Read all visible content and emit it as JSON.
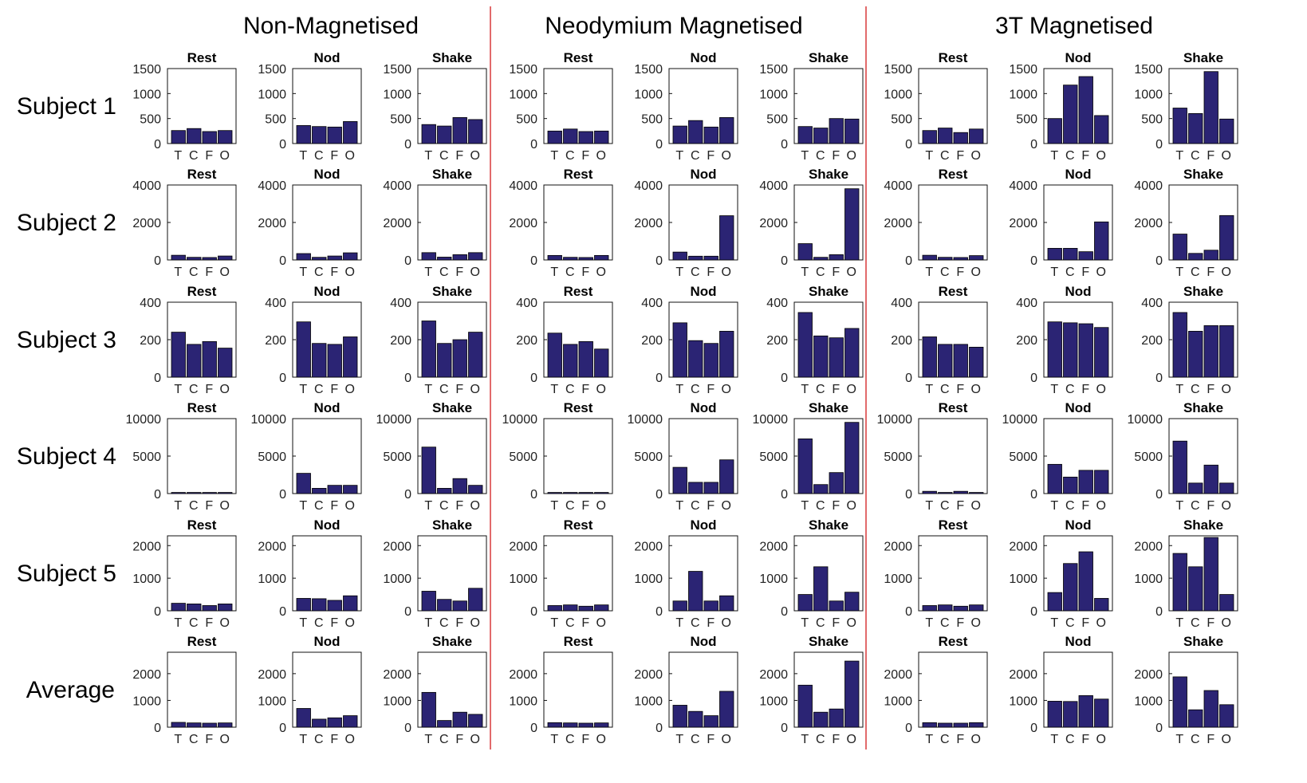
{
  "chart_data": {
    "type": "bar",
    "layout": "small-multiples grid",
    "conditions": [
      "Non-Magnetised",
      "Neodymium Magnetised",
      "3T Magnetised"
    ],
    "tasks": [
      "Rest",
      "Nod",
      "Shake"
    ],
    "categories": [
      "T",
      "C",
      "F",
      "O"
    ],
    "rows": [
      {
        "label": "Subject 1",
        "ylim": [
          0,
          1500
        ],
        "yticks": [
          "0",
          "500",
          "1000",
          "1500"
        ],
        "panels": [
          [
            [
              260,
              300,
              240,
              260
            ],
            [
              360,
              340,
              330,
              440
            ],
            [
              380,
              350,
              520,
              480
            ]
          ],
          [
            [
              250,
              290,
              240,
              250
            ],
            [
              350,
              460,
              330,
              520
            ],
            [
              340,
              310,
              500,
              490
            ]
          ],
          [
            [
              260,
              310,
              220,
              290
            ],
            [
              500,
              1170,
              1340,
              560
            ],
            [
              710,
              600,
              1440,
              490
            ]
          ]
        ]
      },
      {
        "label": "Subject 2",
        "ylim": [
          0,
          4000
        ],
        "yticks": [
          "0",
          "2000",
          "4000"
        ],
        "panels": [
          [
            [
              250,
              140,
              130,
              210
            ],
            [
              340,
              140,
              210,
              380
            ],
            [
              390,
              150,
              280,
              390
            ]
          ],
          [
            [
              240,
              140,
              130,
              240
            ],
            [
              420,
              200,
              200,
              2360
            ],
            [
              870,
              140,
              280,
              3800
            ]
          ],
          [
            [
              250,
              140,
              130,
              230
            ],
            [
              620,
              620,
              440,
              2030
            ],
            [
              1380,
              350,
              520,
              2370
            ]
          ]
        ]
      },
      {
        "label": "Subject 3",
        "ylim": [
          0,
          400
        ],
        "yticks": [
          "0",
          "200",
          "400"
        ],
        "panels": [
          [
            [
              240,
              175,
              190,
              155
            ],
            [
              295,
              180,
              175,
              215
            ],
            [
              300,
              180,
              200,
              240
            ]
          ],
          [
            [
              235,
              175,
              190,
              150
            ],
            [
              290,
              195,
              180,
              245
            ],
            [
              345,
              220,
              210,
              260
            ]
          ],
          [
            [
              215,
              175,
              175,
              160
            ],
            [
              295,
              290,
              285,
              265
            ],
            [
              345,
              245,
              275,
              275
            ]
          ]
        ]
      },
      {
        "label": "Subject 4",
        "ylim": [
          0,
          10000
        ],
        "yticks": [
          "0",
          "5000",
          "10000"
        ],
        "panels": [
          [
            [
              150,
              150,
              150,
              150
            ],
            [
              2700,
              700,
              1100,
              1100
            ],
            [
              6200,
              700,
              2000,
              1100
            ]
          ],
          [
            [
              150,
              150,
              150,
              150
            ],
            [
              3500,
              1500,
              1500,
              4500
            ],
            [
              7300,
              1200,
              2800,
              9500
            ]
          ],
          [
            [
              300,
              150,
              300,
              150
            ],
            [
              3900,
              2200,
              3100,
              3100
            ],
            [
              7000,
              1400,
              3800,
              1400
            ]
          ]
        ]
      },
      {
        "label": "Subject 5",
        "ylim": [
          0,
          2300
        ],
        "yticks": [
          "0",
          "1000",
          "2000"
        ],
        "panels": [
          [
            [
              230,
              210,
              160,
              210
            ],
            [
              380,
              370,
              320,
              460
            ],
            [
              600,
              350,
              300,
              690
            ]
          ],
          [
            [
              160,
              180,
              140,
              180
            ],
            [
              300,
              1210,
              300,
              460
            ],
            [
              500,
              1350,
              300,
              570
            ]
          ],
          [
            [
              160,
              180,
              140,
              180
            ],
            [
              560,
              1450,
              1810,
              380
            ],
            [
              1760,
              1350,
              2250,
              500
            ]
          ]
        ]
      },
      {
        "label": "Average",
        "ylim": [
          0,
          2800
        ],
        "yticks": [
          "0",
          "1000",
          "2000"
        ],
        "panels": [
          [
            [
              180,
              160,
              150,
              160
            ],
            [
              700,
              300,
              350,
              430
            ],
            [
              1300,
              250,
              560,
              480
            ]
          ],
          [
            [
              170,
              160,
              150,
              160
            ],
            [
              820,
              590,
              430,
              1340
            ],
            [
              1570,
              560,
              680,
              2470
            ]
          ],
          [
            [
              170,
              150,
              150,
              170
            ],
            [
              970,
              960,
              1180,
              1050
            ],
            [
              1880,
              650,
              1370,
              840
            ]
          ]
        ]
      }
    ],
    "colors": {
      "bar": "#2b2474",
      "divider": "#d9383a"
    }
  }
}
